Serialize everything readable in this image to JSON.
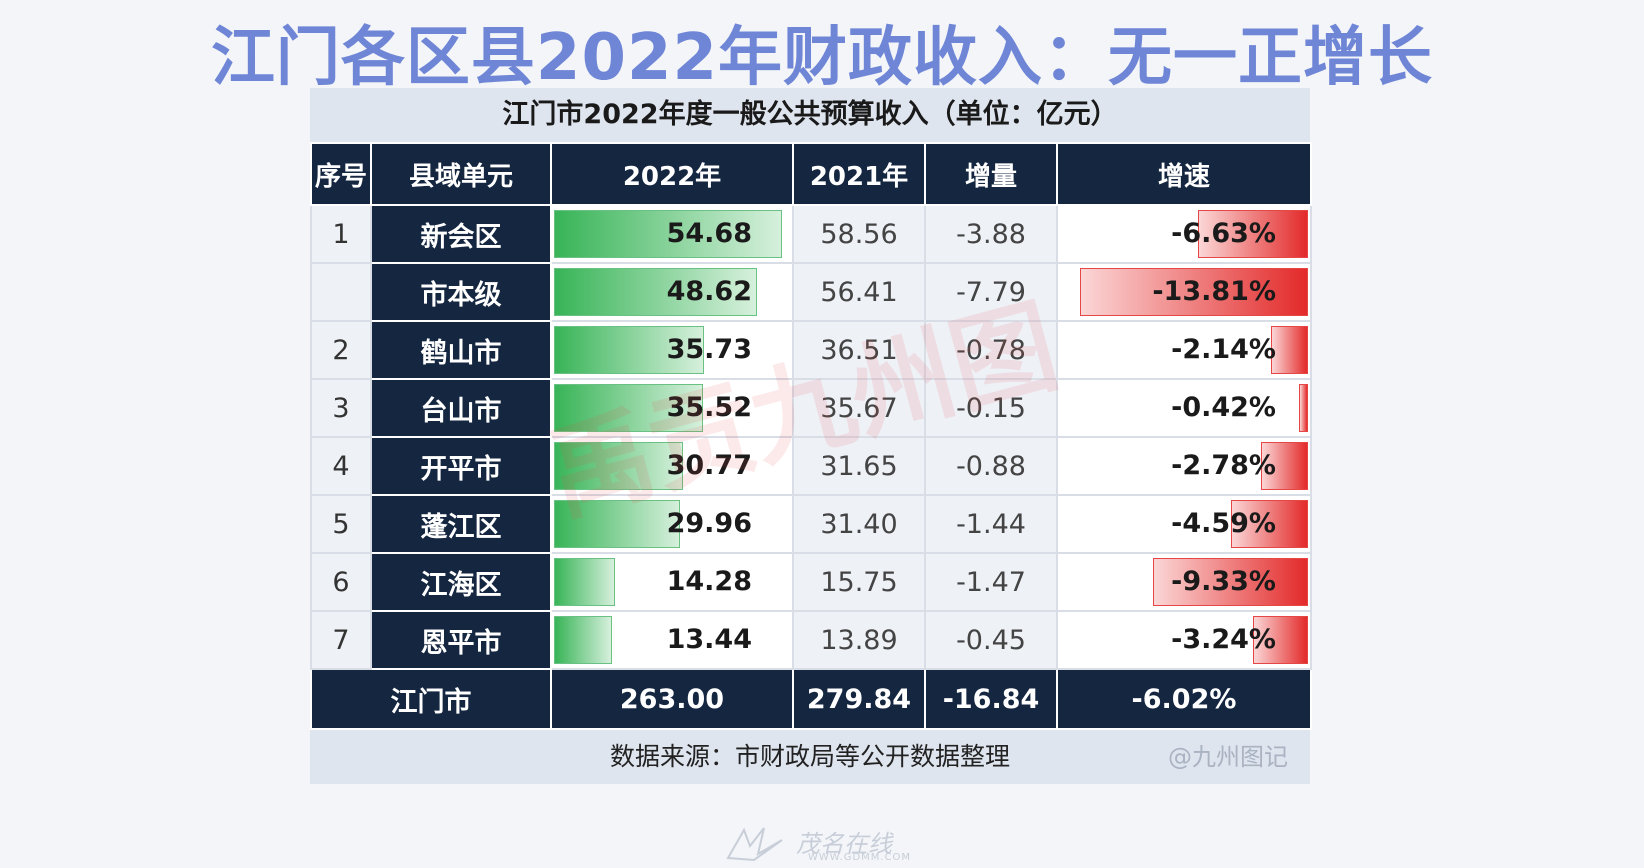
{
  "headline": "江门各区县2022年财政收入：无一正增长",
  "table": {
    "title": "江门市2022年度一般公共预算收入（单位：亿元）",
    "headers": [
      "序号",
      "县域单元",
      "2022年",
      "2021年",
      "增量",
      "增速"
    ],
    "rows": [
      {
        "seq": "1",
        "name": "新会区",
        "y2022": "54.68",
        "y2021": "58.56",
        "increment": "-3.88",
        "growth": "-6.63%",
        "y2022_value": 54.68,
        "growth_value": -6.63
      },
      {
        "seq": "",
        "name": "市本级",
        "y2022": "48.62",
        "y2021": "56.41",
        "increment": "-7.79",
        "growth": "-13.81%",
        "y2022_value": 48.62,
        "growth_value": -13.81
      },
      {
        "seq": "2",
        "name": "鹤山市",
        "y2022": "35.73",
        "y2021": "36.51",
        "increment": "-0.78",
        "growth": "-2.14%",
        "y2022_value": 35.73,
        "growth_value": -2.14
      },
      {
        "seq": "3",
        "name": "台山市",
        "y2022": "35.52",
        "y2021": "35.67",
        "increment": "-0.15",
        "growth": "-0.42%",
        "y2022_value": 35.52,
        "growth_value": -0.42
      },
      {
        "seq": "4",
        "name": "开平市",
        "y2022": "30.77",
        "y2021": "31.65",
        "increment": "-0.88",
        "growth": "-2.78%",
        "y2022_value": 30.77,
        "growth_value": -2.78
      },
      {
        "seq": "5",
        "name": "蓬江区",
        "y2022": "29.96",
        "y2021": "31.40",
        "increment": "-1.44",
        "growth": "-4.59%",
        "y2022_value": 29.96,
        "growth_value": -4.59
      },
      {
        "seq": "6",
        "name": "江海区",
        "y2022": "14.28",
        "y2021": "15.75",
        "increment": "-1.47",
        "growth": "-9.33%",
        "y2022_value": 14.28,
        "growth_value": -9.33
      },
      {
        "seq": "7",
        "name": "恩平市",
        "y2022": "13.44",
        "y2021": "13.89",
        "increment": "-0.45",
        "growth": "-3.24%",
        "y2022_value": 13.44,
        "growth_value": -3.24
      }
    ],
    "total": {
      "name": "江门市",
      "y2022": "263.00",
      "y2021": "279.84",
      "increment": "-16.84",
      "growth": "-6.02%"
    },
    "source": "数据来源：市财政局等公开数据整理",
    "credit": "@九州图记"
  },
  "watermark": "禹贡九州图",
  "footer_logo": {
    "name": "茂名在线",
    "url": "WWW.GDMM.COM"
  },
  "colors": {
    "headline": "#6f86d6",
    "header_bg": "#142640",
    "bar_green": "#38b457",
    "bar_red": "#e32a2a"
  }
}
